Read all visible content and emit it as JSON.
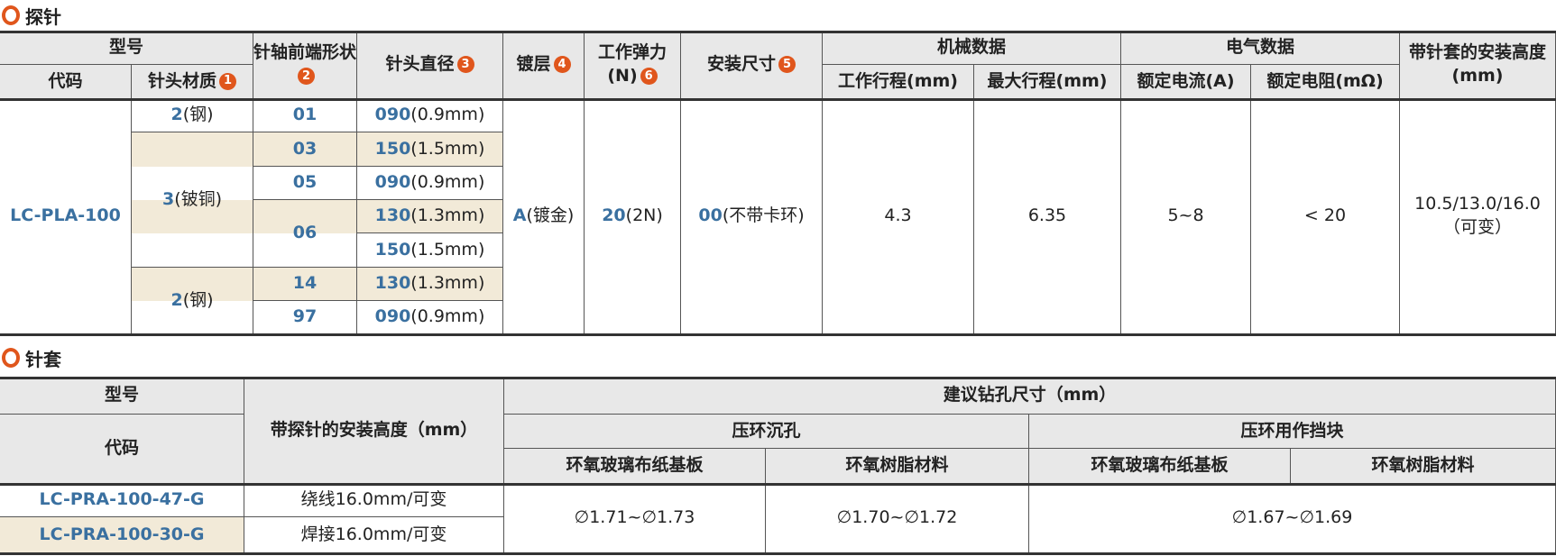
{
  "colors": {
    "accent": "#e0561c",
    "code_blue": "#3a70a0",
    "header_bg": "#e8e8e8",
    "stripe_bg": "#f2ead8"
  },
  "probe": {
    "title": "探针",
    "headers": {
      "model": "型号",
      "code": "代码",
      "tip_material": "针头材质",
      "tip_material_badge": "1",
      "shaft_shape": "针轴前端形状",
      "shaft_shape_badge": "2",
      "tip_diameter": "针头直径",
      "tip_diameter_badge": "3",
      "plating": "镀层",
      "plating_badge": "4",
      "spring_force": "工作弹力(N)",
      "spring_force_badge": "6",
      "mount_size": "安装尺寸",
      "mount_size_badge": "5",
      "mechanical": "机械数据",
      "working_stroke": "工作行程(mm)",
      "max_stroke": "最大行程(mm)",
      "electrical": "电气数据",
      "rated_current": "额定电流(A)",
      "rated_resistance": "额定电阻(mΩ)",
      "install_height": "带针套的安装高度(mm)"
    },
    "code": "LC-PLA-100",
    "materials": [
      {
        "code": "2",
        "detail": "(钢)"
      },
      {
        "code": "3",
        "detail": "(铍铜)"
      },
      {
        "code": "2",
        "detail": "(钢)"
      }
    ],
    "shapes": [
      "01",
      "03",
      "05",
      "06",
      "14",
      "97"
    ],
    "diameters": [
      {
        "code": "090",
        "detail": "(0.9mm)"
      },
      {
        "code": "150",
        "detail": "(1.5mm)"
      },
      {
        "code": "090",
        "detail": "(0.9mm)"
      },
      {
        "code": "130",
        "detail": "(1.3mm)"
      },
      {
        "code": "150",
        "detail": "(1.5mm)"
      },
      {
        "code": "130",
        "detail": "(1.3mm)"
      },
      {
        "code": "090",
        "detail": "(0.9mm)"
      }
    ],
    "plating": {
      "code": "A",
      "detail": "(镀金)"
    },
    "spring": {
      "code": "20",
      "detail": "(2N)"
    },
    "mount": {
      "code": "00",
      "detail": "(不带卡环)"
    },
    "working_stroke": "4.3",
    "max_stroke": "6.35",
    "rated_current": "5~8",
    "rated_resistance": "< 20",
    "install_height": "10.5/13.0/16.0（可变）"
  },
  "socket": {
    "title": "针套",
    "headers": {
      "model": "型号",
      "code": "代码",
      "install_height": "带探针的安装高度（mm）",
      "drill": "建议钻孔尺寸（mm）",
      "countersink": "压环沉孔",
      "stopper": "压环用作挡块",
      "epoxy_glass": "环氧玻璃布纸基板",
      "epoxy_resin": "环氧树脂材料",
      "epoxy_glass2": "环氧玻璃布纸基板",
      "epoxy_resin2": "环氧树脂材料"
    },
    "rows": [
      {
        "code": "LC-PRA-100-47-G",
        "height": "绕线16.0mm/可变"
      },
      {
        "code": "LC-PRA-100-30-G",
        "height": "焊接16.0mm/可变"
      }
    ],
    "cs_glass": "∅1.71~∅1.73",
    "cs_resin": "∅1.70~∅1.72",
    "stopper_val": "∅1.67~∅1.69"
  }
}
